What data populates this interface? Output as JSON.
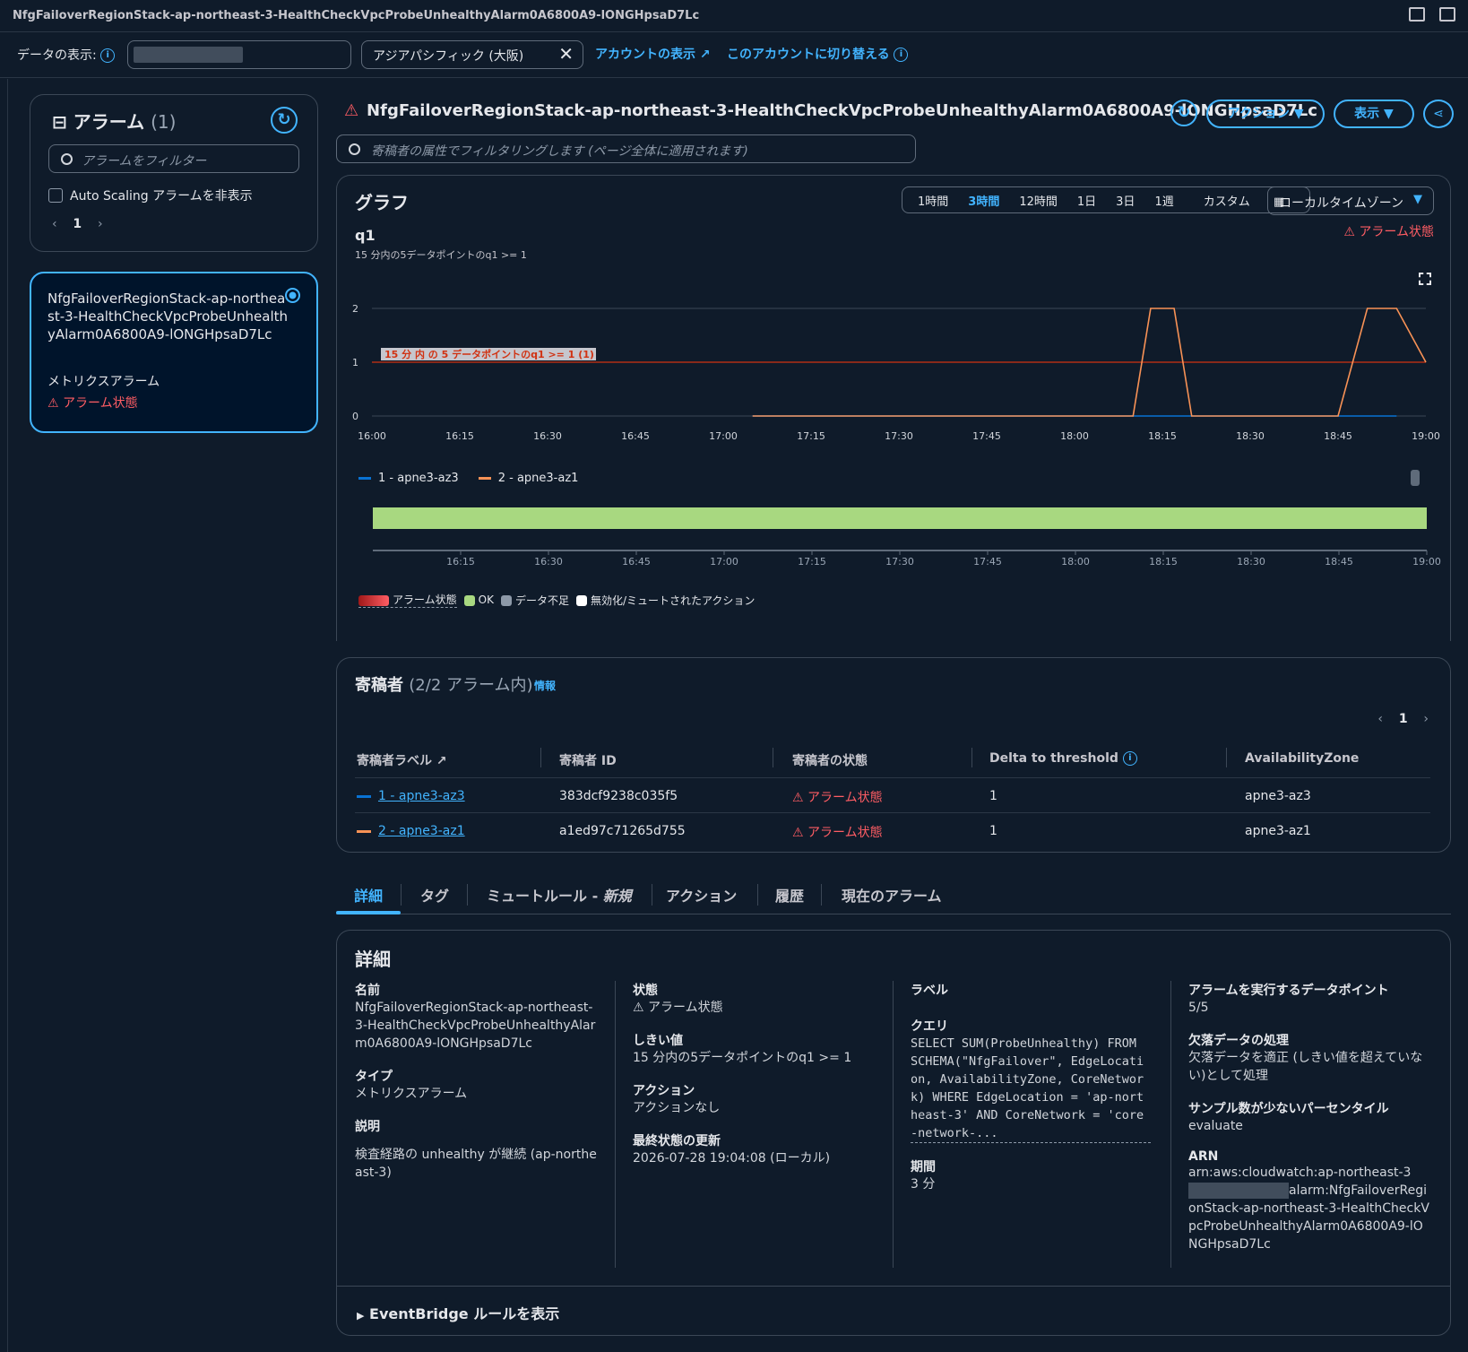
{
  "window_title": "NfgFailoverRegionStack-ap-northeast-3-HealthCheckVpcProbeUnhealthyAlarm0A6800A9-lONGHpsaD7Lc",
  "view_bar": {
    "label": "データの表示:",
    "region": "アジアパシフィック (大阪)",
    "view_account_link": "アカウントの表示",
    "switch_account_link": "このアカウントに切り替える"
  },
  "alarm_list": {
    "title": "アラーム",
    "count": "(1)",
    "filter_placeholder": "アラームをフィルター",
    "hide_autoscaling": "Auto Scaling アラームを非表示",
    "page": "1",
    "items": [
      {
        "name": "NfgFailoverRegionStack-ap-northeast-3-HealthCheckVpcProbeUnhealthyAlarm0A6800A9-lONGHpsaD7Lc",
        "type": "メトリクスアラーム",
        "state": "アラーム状態"
      }
    ]
  },
  "header": {
    "title": "NfgFailoverRegionStack-ap-northeast-3-HealthCheckVpcProbeUnhealthyAlarm0A6800A9-lONGHpsaD7Lc",
    "actions_button": "アクション",
    "view_button": "表示",
    "contributor_filter_placeholder": "寄稿者の属性でフィルタリングします (ページ全体に適用されます)"
  },
  "graph": {
    "title": "グラフ",
    "time_ranges": [
      "1時間",
      "3時間",
      "12時間",
      "1日",
      "3日",
      "1週"
    ],
    "selected_range": "3時間",
    "custom_label": "カスタム",
    "timezone": "ローカルタイムゾーン",
    "state": "アラーム状態",
    "metric_label": "q1",
    "metric_sub": "15 分内の5データポイントのq1 >= 1",
    "legend_alarm": "アラーム状態",
    "legend_ok": "OK",
    "legend_insufficient": "データ不足",
    "legend_muted": "無効化/ミュートされたアクション",
    "colors": {
      "series1": "#0972d3",
      "series2": "#f89256",
      "threshold": "#d13212",
      "ok_band": "#a8d880"
    }
  },
  "chart_data": {
    "type": "line",
    "x": [
      "16:00",
      "16:05",
      "16:10",
      "16:15",
      "16:20",
      "16:25",
      "16:30",
      "16:35",
      "16:40",
      "16:45",
      "16:50",
      "16:55",
      "17:00",
      "17:05",
      "17:10",
      "17:15",
      "17:20",
      "17:25",
      "17:30",
      "17:35",
      "17:40",
      "17:45",
      "17:50",
      "17:55",
      "18:00",
      "18:05",
      "18:10",
      "18:13",
      "18:15",
      "18:17",
      "18:20",
      "18:25",
      "18:30",
      "18:35",
      "18:40",
      "18:45",
      "18:50",
      "18:55",
      "19:00"
    ],
    "xticks": [
      "16:00",
      "16:15",
      "16:30",
      "16:45",
      "17:00",
      "17:15",
      "17:30",
      "17:45",
      "18:00",
      "18:15",
      "18:30",
      "18:45",
      "19:00"
    ],
    "yticks": [
      0,
      1,
      2
    ],
    "ylim": [
      0,
      2
    ],
    "series": [
      {
        "name": "1 - apne3-az3",
        "values": [
          null,
          null,
          null,
          null,
          null,
          null,
          null,
          null,
          null,
          null,
          null,
          null,
          null,
          0,
          0,
          0,
          0,
          0,
          0,
          0,
          0,
          0,
          0,
          0,
          0,
          0,
          0,
          0,
          0,
          0,
          0,
          0,
          0,
          0,
          0,
          0,
          0,
          0,
          null
        ]
      },
      {
        "name": "2 - apne3-az1",
        "values": [
          null,
          null,
          null,
          null,
          null,
          null,
          null,
          null,
          null,
          null,
          null,
          null,
          null,
          0,
          0,
          0,
          0,
          0,
          0,
          0,
          0,
          0,
          0,
          0,
          0,
          0,
          0,
          2,
          2,
          2,
          0,
          0,
          0,
          0,
          0,
          0,
          2,
          2,
          1
        ]
      }
    ],
    "threshold": {
      "value": 1,
      "label": "15 分 内 の 5 データポイントのq1 >= 1 (1)"
    },
    "state_band": {
      "xticks": [
        "16:15",
        "16:30",
        "16:45",
        "17:00",
        "17:15",
        "17:30",
        "17:45",
        "18:00",
        "18:15",
        "18:30",
        "18:45",
        "19:00"
      ],
      "segments": [
        {
          "from": "16:00",
          "to": "19:00",
          "state": "OK"
        }
      ]
    }
  },
  "contributors": {
    "title": "寄稿者",
    "count": "(2/2 アラーム内)",
    "info": "情報",
    "page": "1",
    "columns": [
      "寄稿者ラベル",
      "寄稿者 ID",
      "寄稿者の状態",
      "Delta to threshold",
      "AvailabilityZone"
    ],
    "rows": [
      {
        "label": "1 - apne3-az3",
        "id": "383dcf9238c035f5",
        "state": "アラーム状態",
        "delta": "1",
        "az": "apne3-az3",
        "color": "#0972d3"
      },
      {
        "label": "2 - apne3-az1",
        "id": "a1ed97c71265d755",
        "state": "アラーム状態",
        "delta": "1",
        "az": "apne3-az1",
        "color": "#f89256"
      }
    ]
  },
  "tabs": {
    "items": [
      "詳細",
      "タグ",
      "ミュートルール - ",
      "アクション",
      "履歴",
      "現在のアラーム"
    ],
    "mute_new": "新規",
    "active": "詳細"
  },
  "details": {
    "title": "詳細",
    "name_label": "名前",
    "name": "NfgFailoverRegionStack-ap-northeast-3-HealthCheckVpcProbeUnhealthyAlarm0A6800A9-lONGHpsaD7Lc",
    "type_label": "タイプ",
    "type": "メトリクスアラーム",
    "desc_label": "説明",
    "desc": "検査経路の unhealthy が継続 (ap-northeast-3)",
    "state_label": "状態",
    "state": "アラーム状態",
    "threshold_label": "しきい値",
    "threshold": "15 分内の5データポイントのq1 >= 1",
    "action_label": "アクション",
    "action": "アクションなし",
    "updated_label": "最終状態の更新",
    "updated": "2026-07-28 19:04:08 (ローカル)",
    "label_label": "ラベル",
    "query_label": "クエリ",
    "query": "SELECT SUM(ProbeUnhealthy) FROM SCHEMA(\"NfgFailover\", EdgeLocation, AvailabilityZone, CoreNetwork) WHERE EdgeLocation = 'ap-northeast-3' AND CoreNetwork = 'core-network-...",
    "period_label": "期間",
    "period": "3 分",
    "datapoints_label": "アラームを実行するデータポイント",
    "datapoints": "5/5",
    "missing_label": "欠落データの処理",
    "missing": "欠落データを適正 (しきい値を超えていない)として処理",
    "percentile_label": "サンプル数が少ないパーセンタイル",
    "percentile": "evaluate",
    "arn_label": "ARN",
    "arn_prefix": "arn:aws:cloudwatch:ap-northeast-3",
    "arn_suffix": "alarm:NfgFailoverRegionStack-ap-northeast-3-HealthCheckVpcProbeUnhealthyAlarm0A6800A9-lONGHpsaD7Lc",
    "eventbridge": "EventBridge ルールを表示"
  }
}
